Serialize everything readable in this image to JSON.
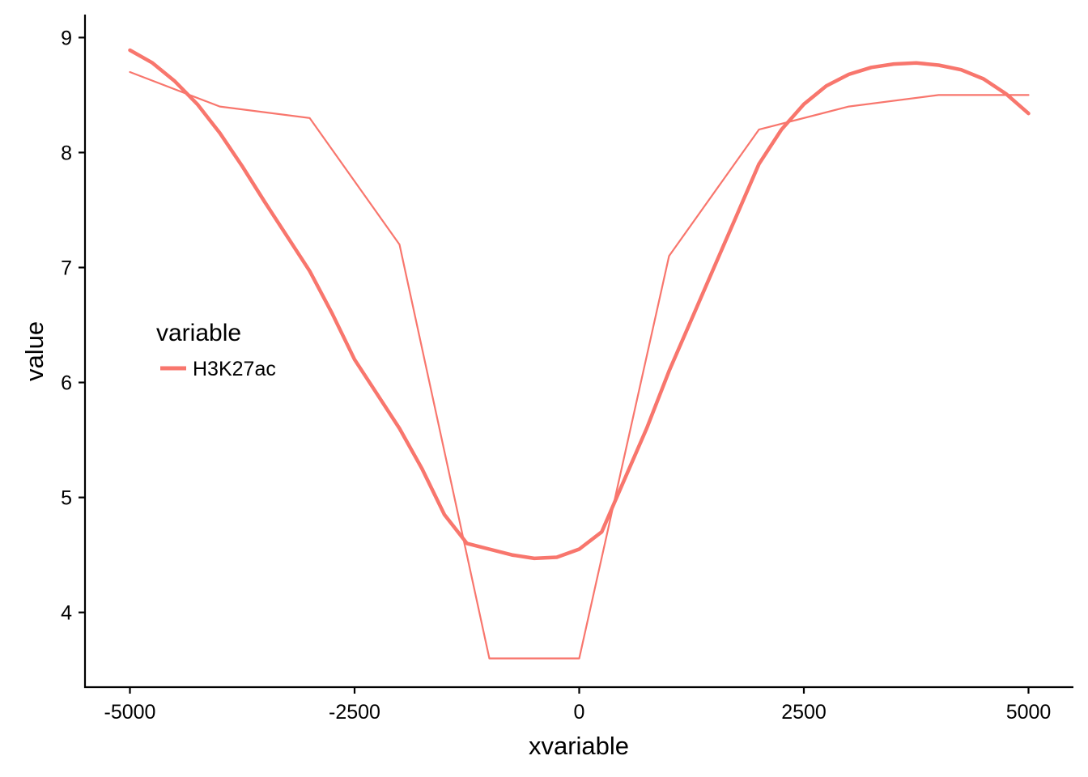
{
  "chart_data": {
    "type": "line",
    "title": "",
    "xlabel": "xvariable",
    "ylabel": "value",
    "xlim": [
      -5500,
      5500
    ],
    "ylim": [
      3.35,
      9.2
    ],
    "xticks": [
      -5000,
      -2500,
      0,
      2500,
      5000
    ],
    "xtick_labels": [
      "-5000",
      "-2500",
      "0",
      "2500",
      "5000"
    ],
    "yticks": [
      4,
      5,
      6,
      7,
      8,
      9
    ],
    "ytick_labels": [
      "4",
      "5",
      "6",
      "7",
      "8",
      "9"
    ],
    "grid": false,
    "legend": {
      "title": "variable",
      "placement": "left-middle",
      "entries": [
        "H3K27ac"
      ]
    },
    "colors": {
      "series": "#f8766d",
      "axis": "#000000"
    },
    "series": [
      {
        "name": "H3K27ac",
        "kind": "raw",
        "x": [
          -5000,
          -4000,
          -3000,
          -2000,
          -1000,
          0,
          1000,
          2000,
          3000,
          4000,
          5000
        ],
        "values": [
          8.7,
          8.4,
          8.3,
          7.2,
          3.6,
          3.6,
          7.1,
          8.2,
          8.4,
          8.5,
          8.5
        ]
      },
      {
        "name": "H3K27ac",
        "kind": "smooth",
        "x": [
          -5000,
          -4750,
          -4500,
          -4250,
          -4000,
          -3750,
          -3500,
          -3250,
          -3000,
          -2750,
          -2500,
          -2250,
          -2000,
          -1750,
          -1500,
          -1250,
          -1000,
          -750,
          -500,
          -250,
          0,
          250,
          500,
          750,
          1000,
          1250,
          1500,
          1750,
          2000,
          2250,
          2500,
          2750,
          3000,
          3250,
          3500,
          3750,
          4000,
          4250,
          4500,
          4750,
          5000
        ],
        "values": [
          8.89,
          8.78,
          8.62,
          8.42,
          8.17,
          7.88,
          7.57,
          7.27,
          6.97,
          6.6,
          6.2,
          5.9,
          5.6,
          5.25,
          4.85,
          4.6,
          4.55,
          4.5,
          4.47,
          4.48,
          4.55,
          4.7,
          5.15,
          5.6,
          6.1,
          6.55,
          7.0,
          7.45,
          7.9,
          8.2,
          8.42,
          8.58,
          8.68,
          8.74,
          8.77,
          8.78,
          8.76,
          8.72,
          8.64,
          8.51,
          8.34
        ]
      }
    ]
  }
}
